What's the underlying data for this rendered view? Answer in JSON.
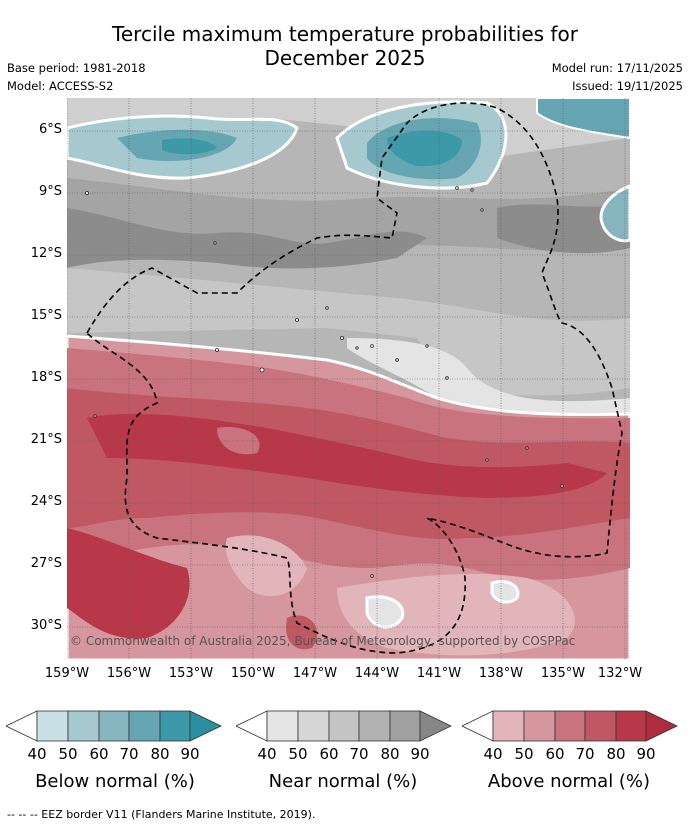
{
  "title": {
    "line1": "Tercile maximum temperature probabilities for",
    "line2": "December 2025"
  },
  "meta": {
    "base_period": "Base period: 1981-2018",
    "model": "Model: ACCESS-S2",
    "model_run": "Model run: 17/11/2025",
    "issued": "Issued: 19/11/2025"
  },
  "map": {
    "lat_labels": [
      "6°S",
      "9°S",
      "12°S",
      "15°S",
      "18°S",
      "21°S",
      "24°S",
      "27°S",
      "30°S"
    ],
    "lon_labels": [
      "159°W",
      "156°W",
      "153°W",
      "150°W",
      "147°W",
      "144°W",
      "141°W",
      "138°W",
      "135°W",
      "132°W"
    ],
    "copyright": "© Commonwealth of Australia 2025, Bureau of Meteorology, supported by COSPPac"
  },
  "legend": [
    {
      "title": "Below normal (%)",
      "ticks": [
        "40",
        "50",
        "60",
        "70",
        "80",
        "90"
      ],
      "colors": [
        "#ffffff",
        "#c8e0e6",
        "#a6c9d0",
        "#87b5bf",
        "#66a6b2",
        "#3c9aa8",
        "#2a8f9e"
      ]
    },
    {
      "title": "Near normal (%)",
      "ticks": [
        "40",
        "50",
        "60",
        "70",
        "80",
        "90"
      ],
      "colors": [
        "#ffffff",
        "#e4e4e4",
        "#d6d6d6",
        "#c4c4c4",
        "#b2b2b2",
        "#a0a0a0",
        "#868686"
      ]
    },
    {
      "title": "Above normal (%)",
      "ticks": [
        "40",
        "50",
        "60",
        "70",
        "80",
        "90"
      ],
      "colors": [
        "#ffffff",
        "#e2b5bb",
        "#d5969e",
        "#c8737e",
        "#c05864",
        "#b8384a",
        "#b02a40"
      ]
    }
  ],
  "footnote": "--  --  -- EEZ border V11 (Flanders Marine Institute, 2019)."
}
